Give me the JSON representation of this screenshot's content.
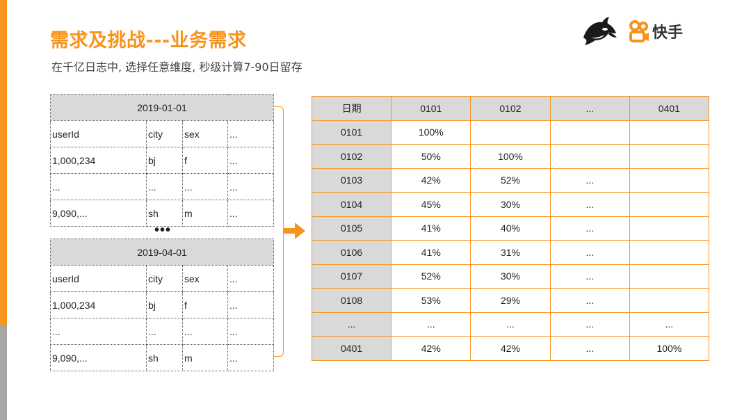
{
  "title": "需求及挑战---业务需求",
  "subtitle": "在千亿日志中, 选择任意维度, 秒级计算7-90日留存",
  "logo": {
    "brand_text": "快手",
    "orca_icon": "orca-logo-icon",
    "brand_icon": "kuaishou-logo-icon"
  },
  "accent_color": "#f7941d",
  "log_tables": [
    {
      "date": "2019-01-01",
      "rows": [
        [
          "userId",
          "city",
          "sex",
          "..."
        ],
        [
          "1,000,234",
          "bj",
          "f",
          "..."
        ],
        [
          "...",
          "...",
          "...",
          "..."
        ],
        [
          "9,090,...",
          "sh",
          "m",
          "..."
        ]
      ]
    },
    {
      "date": "2019-04-01",
      "rows": [
        [
          "userId",
          "city",
          "sex",
          "..."
        ],
        [
          "1,000,234",
          "bj",
          "f",
          "..."
        ],
        [
          "...",
          "...",
          "...",
          "..."
        ],
        [
          "9,090,...",
          "sh",
          "m",
          "..."
        ]
      ]
    }
  ],
  "between_dots": "•••",
  "retention": {
    "header": [
      "日期",
      "0101",
      "0102",
      "...",
      "0401"
    ],
    "rows": [
      [
        "0101",
        "100%",
        "",
        "",
        ""
      ],
      [
        "0102",
        "50%",
        "100%",
        "",
        ""
      ],
      [
        "0103",
        "42%",
        "52%",
        "...",
        ""
      ],
      [
        "0104",
        "45%",
        "30%",
        "...",
        ""
      ],
      [
        "0105",
        "41%",
        "40%",
        "...",
        ""
      ],
      [
        "0106",
        "41%",
        "31%",
        "...",
        ""
      ],
      [
        "0107",
        "52%",
        "30%",
        "...",
        ""
      ],
      [
        "0108",
        "53%",
        "29%",
        "...",
        ""
      ],
      [
        "...",
        "...",
        "...",
        "...",
        "..."
      ],
      [
        "0401",
        "42%",
        "42%",
        "...",
        "100%"
      ]
    ]
  }
}
